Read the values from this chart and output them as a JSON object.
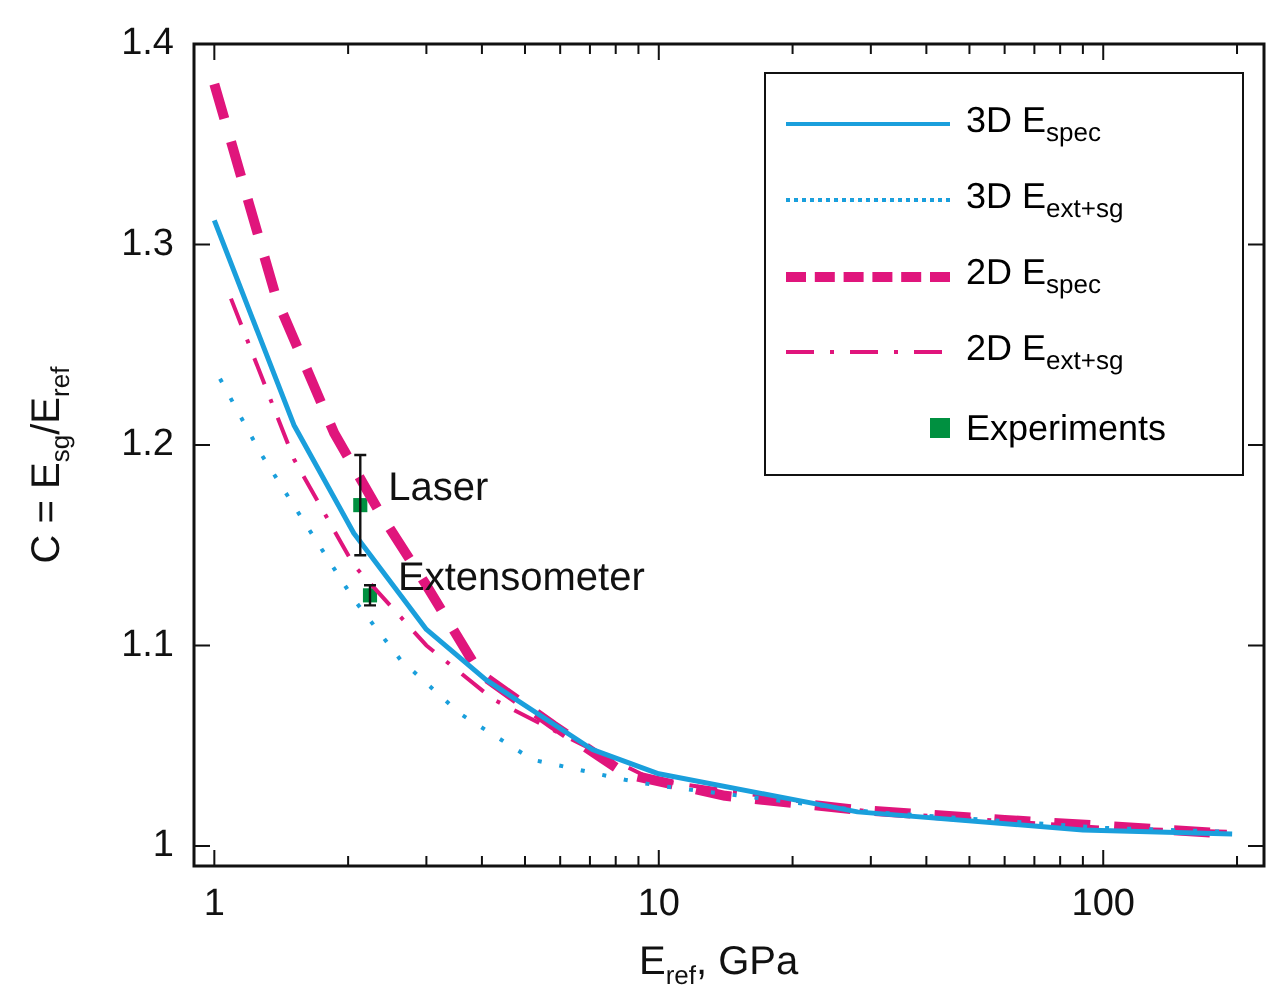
{
  "chart_data": {
    "type": "line",
    "xlabel": "E$_{ref}$, GPa",
    "ylabel": "C = E$_{sg}$/E$_{ref}$",
    "log": "x",
    "grid": false,
    "legend": "top right",
    "xlim": [
      0.9,
      230
    ],
    "ylim": [
      0.99,
      1.4
    ],
    "xticks": [
      1,
      {
        "value": 2,
        "label": null
      },
      {
        "value": 3,
        "label": null
      },
      {
        "value": 4,
        "label": null
      },
      {
        "value": 5,
        "label": null
      },
      {
        "value": 6,
        "label": null
      },
      {
        "value": 7,
        "label": null
      },
      {
        "value": 8,
        "label": null
      },
      {
        "value": 9,
        "label": null
      },
      10,
      {
        "value": 20,
        "label": null
      },
      {
        "value": 30,
        "label": null
      },
      {
        "value": 40,
        "label": null
      },
      {
        "value": 50,
        "label": null
      },
      {
        "value": 60,
        "label": null
      },
      {
        "value": 70,
        "label": null
      },
      {
        "value": 80,
        "label": null
      },
      {
        "value": 90,
        "label": null
      },
      100,
      {
        "value": 200,
        "label": null
      }
    ],
    "yticks": [
      1,
      1.1,
      1.2,
      1.3,
      1.4
    ],
    "series": [
      {
        "name": "3D E$_{spec}$",
        "color": "#1a9fdc",
        "line_style": "solid",
        "marker": "none",
        "x": [
          1,
          1.51,
          2.06,
          3.0,
          4.08,
          7.1,
          10,
          28,
          90,
          195
        ],
        "values": [
          1.312,
          1.21,
          1.156,
          1.108,
          1.083,
          1.048,
          1.036,
          1.017,
          1.008,
          1.006
        ]
      },
      {
        "name": "3D E$_{ext+sg}$",
        "color": "#1a9fdc",
        "line_style": "dotted",
        "marker": "none",
        "x": [
          1.03,
          1.27,
          1.61,
          2.06,
          2.62,
          3.57,
          5.2,
          8.4,
          10,
          30,
          100,
          195
        ],
        "values": [
          1.233,
          1.196,
          1.16,
          1.123,
          1.093,
          1.066,
          1.043,
          1.033,
          1.03,
          1.017,
          1.009,
          1.007
        ]
      },
      {
        "name": "2D E$_{spec}$",
        "color": "#e0157c",
        "line_style": "dashed",
        "marker": "none",
        "x": [
          1,
          1.38,
          1.86,
          2.36,
          3.0,
          3.96,
          5.8,
          8.4,
          14.1,
          28,
          60,
          100,
          195
        ],
        "values": [
          1.38,
          1.273,
          1.206,
          1.166,
          1.13,
          1.086,
          1.06,
          1.036,
          1.025,
          1.018,
          1.013,
          1.01,
          1.006
        ]
      },
      {
        "name": "2D E$_{ext+sg}$",
        "color": "#e0157c",
        "line_style": "dashdot",
        "marker": "none",
        "x": [
          1.09,
          1.51,
          2.06,
          3.0,
          4.25,
          6.0,
          9.7,
          30,
          100,
          195
        ],
        "values": [
          1.273,
          1.193,
          1.14,
          1.1,
          1.073,
          1.056,
          1.033,
          1.017,
          1.009,
          1.007
        ]
      },
      {
        "name": "Experiments",
        "type": "scatter",
        "color": "#009040",
        "marker": "square",
        "x": [
          2.13,
          2.24
        ],
        "values": [
          1.17,
          1.125
        ],
        "errors": [
          0.025,
          0.005
        ]
      }
    ],
    "annotations": [
      {
        "text": "Laser",
        "x": 2.13,
        "y": 1.17
      },
      {
        "text": "Extensometer",
        "x": 2.24,
        "y": 1.125
      }
    ]
  }
}
